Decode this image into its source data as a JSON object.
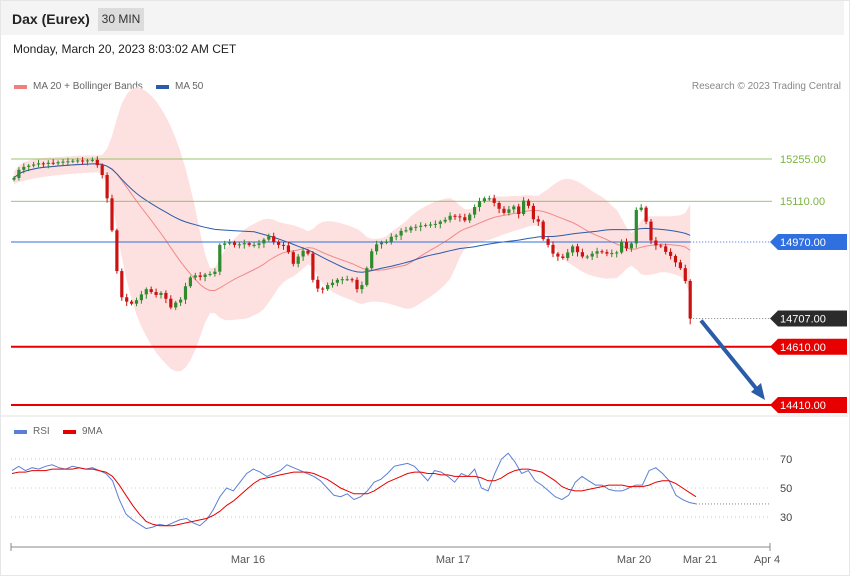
{
  "header": {
    "title": "Dax (Eurex)",
    "timeframe": "30 MIN"
  },
  "datetime": "Monday, March 20, 2023 8:03:02 AM CET",
  "copyright": "Research © 2023 Trading Central",
  "colors": {
    "bollinger": "#f08080",
    "ma50": "#2a5caa",
    "resistance": "#7cb342",
    "pivot": "#2f6fe0",
    "support": "#e60000",
    "arrow": "#2a5ca8",
    "rsi": "#5b7fd6",
    "rsi_ma": "#e60000",
    "candle_up": "#2e8b2e",
    "candle_down": "#cc1111"
  },
  "chart_data": [
    {
      "type": "candlestick",
      "indicators": [
        "MA 20 + Bollinger Bands",
        "MA 50"
      ],
      "x_ticks": [
        "Mar 16",
        "Mar 17",
        "Mar 20",
        "Mar 21",
        "Apr 4"
      ],
      "levels": [
        {
          "value": 15255,
          "label": "15255.00",
          "kind": "resistance"
        },
        {
          "value": 15110,
          "label": "15110.00",
          "kind": "resistance"
        },
        {
          "value": 14970,
          "label": "14970.00",
          "kind": "pivot"
        },
        {
          "value": 14707,
          "label": "14707.00",
          "kind": "last"
        },
        {
          "value": 14610,
          "label": "14610.00",
          "kind": "support"
        },
        {
          "value": 14410,
          "label": "14410.00",
          "kind": "support"
        }
      ],
      "last_price": 14707,
      "forecast": {
        "direction": "down",
        "from": 14707,
        "target": 14410
      },
      "close": [
        15190,
        15218,
        15228,
        15232,
        15236,
        15240,
        15238,
        15242,
        15240,
        15244,
        15246,
        15247,
        15249,
        15250,
        15248,
        15250,
        15252,
        15234,
        15200,
        15120,
        15010,
        14870,
        14780,
        14765,
        14758,
        14770,
        14790,
        14808,
        14798,
        14788,
        14795,
        14775,
        14745,
        14762,
        14772,
        14818,
        14848,
        14855,
        14850,
        14858,
        14860,
        14868,
        14960,
        14965,
        14968,
        14960,
        14962,
        14966,
        14960,
        14960,
        14965,
        14978,
        14990,
        14970,
        14960,
        14958,
        14935,
        14895,
        14920,
        14940,
        14930,
        14840,
        14810,
        14808,
        14822,
        14830,
        14840,
        14842,
        14842,
        14840,
        14808,
        14822,
        14880,
        14938,
        14962,
        14968,
        14970,
        14988,
        14992,
        15008,
        15010,
        15020,
        15022,
        15026,
        15028,
        15030,
        15032,
        15040,
        15046,
        15060,
        15058,
        15055,
        15044,
        15064,
        15090,
        15110,
        15120,
        15120,
        15104,
        15084,
        15070,
        15082,
        15092,
        15066,
        15112,
        15094,
        15048,
        15040,
        14980,
        14960,
        14930,
        14920,
        14915,
        14934,
        14955,
        14935,
        14920,
        14920,
        14930,
        14938,
        14935,
        14930,
        14932,
        14934,
        14970,
        14948,
        14965,
        15080,
        15088,
        15040,
        14975,
        14958,
        14955,
        14936,
        14922,
        14900,
        14880,
        14836,
        14707
      ],
      "rsi": {
        "levels": [
          70,
          50,
          30
        ],
        "rsi_values": [
          62,
          65,
          62,
          64,
          63,
          65,
          66,
          64,
          63,
          65,
          64,
          63,
          64,
          62,
          60,
          55,
          42,
          32,
          28,
          25,
          22,
          23,
          25,
          24,
          26,
          28,
          29,
          26,
          24,
          28,
          35,
          44,
          50,
          48,
          54,
          60,
          63,
          61,
          58,
          60,
          62,
          66,
          64,
          62,
          60,
          58,
          55,
          50,
          45,
          44,
          46,
          42,
          44,
          48,
          54,
          56,
          60,
          65,
          66,
          67,
          65,
          60,
          55,
          62,
          61,
          58,
          54,
          60,
          58,
          63,
          50,
          48,
          60,
          70,
          74,
          68,
          60,
          62,
          55,
          52,
          48,
          44,
          42,
          45,
          54,
          58,
          55,
          52,
          52,
          49,
          48,
          48,
          50,
          52,
          52,
          62,
          64,
          60,
          55,
          45,
          42,
          40,
          39
        ],
        "rsi_ma_values": [
          60,
          61,
          61,
          62,
          62,
          62,
          63,
          63,
          63,
          63,
          64,
          63,
          63,
          62,
          61,
          58,
          52,
          45,
          38,
          32,
          27,
          25,
          24,
          24,
          24,
          25,
          26,
          27,
          28,
          29,
          31,
          34,
          38,
          41,
          45,
          49,
          53,
          56,
          57,
          58,
          59,
          60,
          61,
          61,
          61,
          60,
          58,
          56,
          53,
          50,
          48,
          46,
          46,
          46,
          48,
          51,
          54,
          56,
          58,
          60,
          61,
          61,
          60,
          60,
          59,
          59,
          58,
          58,
          58,
          58,
          57,
          55,
          55,
          57,
          60,
          62,
          63,
          63,
          62,
          61,
          58,
          55,
          51,
          49,
          48,
          48,
          49,
          50,
          51,
          52,
          52,
          52,
          51,
          51,
          51,
          52,
          54,
          55,
          55,
          53,
          50,
          47,
          44
        ]
      }
    }
  ]
}
